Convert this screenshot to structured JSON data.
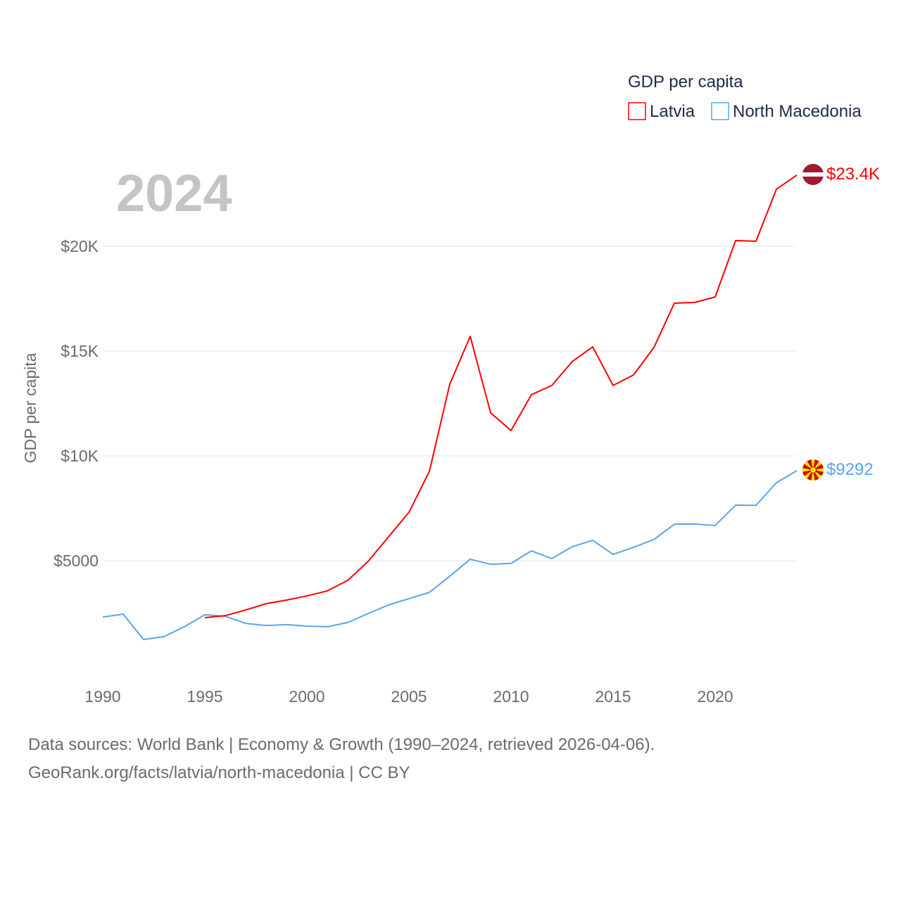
{
  "chart_data": {
    "type": "line",
    "title": "GDP per capita",
    "year_label": "2024",
    "ylabel": "GDP per capita",
    "xlabel": "",
    "xlim": [
      1990,
      2024
    ],
    "ylim": [
      0,
      25000
    ],
    "grid": true,
    "legend_placement": "top-right",
    "x_ticks": [
      1990,
      1995,
      2000,
      2005,
      2010,
      2015,
      2020
    ],
    "x_tick_labels": [
      "1990",
      "1995",
      "2000",
      "2005",
      "2010",
      "2015",
      "2020"
    ],
    "y_ticks": [
      5000,
      10000,
      15000,
      20000
    ],
    "y_tick_labels": [
      "$5000",
      "$10K",
      "$15K",
      "$20K"
    ],
    "series": [
      {
        "name": "Latvia",
        "color": "#ff0000",
        "end_label": "$23.4K",
        "flag": "latvia-flag",
        "x": [
          1995,
          1996,
          1997,
          1998,
          1999,
          2000,
          2001,
          2002,
          2003,
          2004,
          2005,
          2006,
          2007,
          2008,
          2009,
          2010,
          2011,
          2012,
          2013,
          2014,
          2015,
          2016,
          2017,
          2018,
          2019,
          2020,
          2021,
          2022,
          2023,
          2024
        ],
        "values": [
          2280,
          2380,
          2650,
          2950,
          3120,
          3320,
          3560,
          4060,
          4970,
          6140,
          7310,
          9260,
          13420,
          15700,
          12050,
          11210,
          12920,
          13360,
          14500,
          15200,
          13360,
          13860,
          15170,
          17280,
          17320,
          17580,
          20270,
          20240,
          22720,
          23390
        ]
      },
      {
        "name": "North Macedonia",
        "color": "#5ba4ec",
        "end_label": "$9292",
        "flag": "north-macedonia-flag",
        "x": [
          1990,
          1991,
          1992,
          1993,
          1994,
          1995,
          1996,
          1997,
          1998,
          1999,
          2000,
          2001,
          2002,
          2003,
          2004,
          2005,
          2006,
          2007,
          2008,
          2009,
          2010,
          2011,
          2012,
          2013,
          2014,
          2015,
          2016,
          2017,
          2018,
          2019,
          2020,
          2021,
          2022,
          2023,
          2024
        ],
        "values": [
          2310,
          2450,
          1240,
          1380,
          1850,
          2420,
          2350,
          2010,
          1910,
          1950,
          1880,
          1850,
          2050,
          2480,
          2890,
          3190,
          3490,
          4260,
          5070,
          4830,
          4870,
          5470,
          5100,
          5670,
          5970,
          5300,
          5640,
          6010,
          6740,
          6750,
          6680,
          7650,
          7640,
          8720,
          9292
        ]
      }
    ]
  },
  "footer": {
    "line1": "Data sources: World Bank | Economy & Growth (1990–2024, retrieved 2026-04-06).",
    "line2": "GeoRank.org/facts/latvia/north-macedonia | CC BY"
  }
}
